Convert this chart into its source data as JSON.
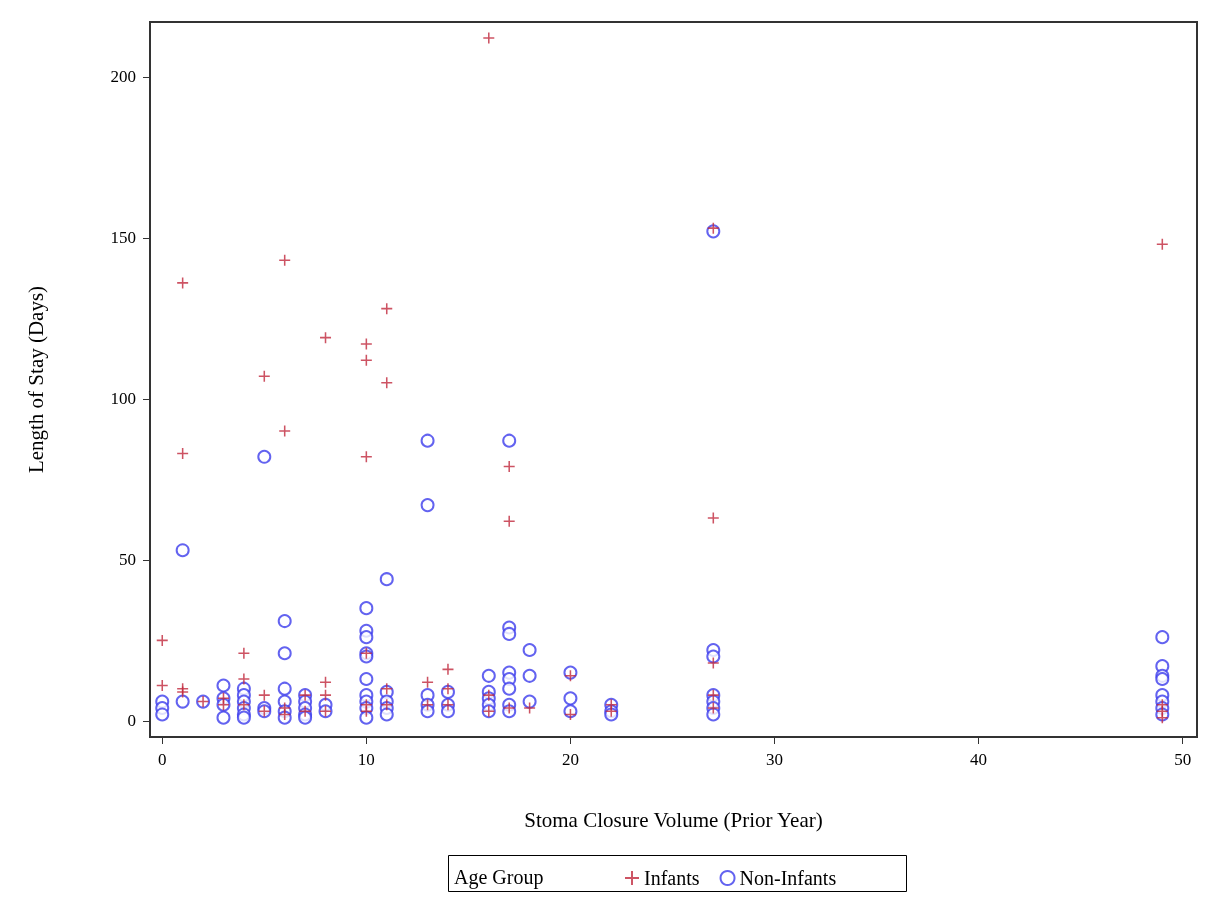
{
  "chart_data": {
    "type": "scatter",
    "xlabel": "Stoma Closure Volume (Prior Year)",
    "ylabel": "Length of Stay (Days)",
    "legend_title": "Age Group",
    "legend": "bottom",
    "grid": false,
    "xlim": [
      -0.6,
      50.7
    ],
    "xticks": [
      0,
      10,
      20,
      30,
      40,
      50
    ],
    "ylim": [
      -5,
      217
    ],
    "yticks": [
      0,
      50,
      100,
      150,
      200
    ],
    "series": [
      {
        "name": "Infants",
        "color": "#c0283c",
        "marker": "cross",
        "x": [
          0,
          0,
          1,
          1,
          1,
          1,
          2,
          3,
          3,
          4,
          4,
          4,
          5,
          5,
          5,
          6,
          6,
          6,
          6,
          7,
          7,
          8,
          8,
          8,
          8,
          10,
          10,
          10,
          10,
          10,
          10,
          11,
          11,
          11,
          11,
          13,
          13,
          14,
          14,
          14,
          16,
          16,
          16,
          17,
          17,
          17,
          18,
          20,
          20,
          22,
          22,
          27,
          27,
          27,
          27,
          27,
          49,
          49,
          49,
          49
        ],
        "values": [
          25,
          11,
          136,
          83,
          10,
          9,
          6,
          5,
          7,
          21,
          13,
          5,
          8,
          107,
          3,
          143,
          90,
          2,
          4,
          8,
          3,
          119,
          12,
          8,
          3,
          117,
          112,
          82,
          21,
          5,
          3,
          128,
          105,
          10,
          5,
          12,
          5,
          16,
          10,
          5,
          212,
          8,
          3,
          79,
          62,
          4,
          4,
          14,
          2,
          5,
          3,
          153,
          63,
          18,
          8,
          4,
          148,
          5,
          3,
          1
        ]
      },
      {
        "name": "Non-Infants",
        "color": "#3c3cec",
        "marker": "circle",
        "x": [
          0,
          0,
          0,
          1,
          1,
          2,
          3,
          3,
          3,
          3,
          4,
          4,
          4,
          4,
          4,
          4,
          5,
          5,
          5,
          6,
          6,
          6,
          6,
          6,
          6,
          7,
          7,
          7,
          7,
          7,
          8,
          8,
          10,
          10,
          10,
          10,
          10,
          10,
          10,
          10,
          10,
          10,
          11,
          11,
          11,
          11,
          11,
          13,
          13,
          13,
          13,
          13,
          14,
          14,
          14,
          16,
          16,
          16,
          16,
          16,
          17,
          17,
          17,
          17,
          17,
          17,
          17,
          17,
          18,
          18,
          18,
          20,
          20,
          20,
          22,
          22,
          22,
          27,
          27,
          27,
          27,
          27,
          27,
          27,
          49,
          49,
          49,
          49,
          49,
          49,
          49,
          49
        ],
        "values": [
          6,
          4,
          2,
          53,
          6,
          6,
          11,
          7,
          5,
          1,
          10,
          8,
          6,
          4,
          2,
          1,
          82,
          4,
          3,
          31,
          21,
          10,
          6,
          3,
          1,
          8,
          6,
          4,
          2,
          1,
          5,
          3,
          35,
          28,
          26,
          21,
          20,
          13,
          8,
          6,
          4,
          1,
          44,
          9,
          6,
          4,
          2,
          87,
          67,
          8,
          5,
          3,
          9,
          5,
          3,
          14,
          9,
          7,
          5,
          3,
          87,
          29,
          27,
          15,
          13,
          10,
          5,
          3,
          22,
          14,
          6,
          15,
          7,
          3,
          5,
          3,
          2,
          152,
          22,
          20,
          8,
          6,
          4,
          2,
          26,
          17,
          14,
          13,
          8,
          6,
          4,
          2
        ]
      }
    ]
  }
}
